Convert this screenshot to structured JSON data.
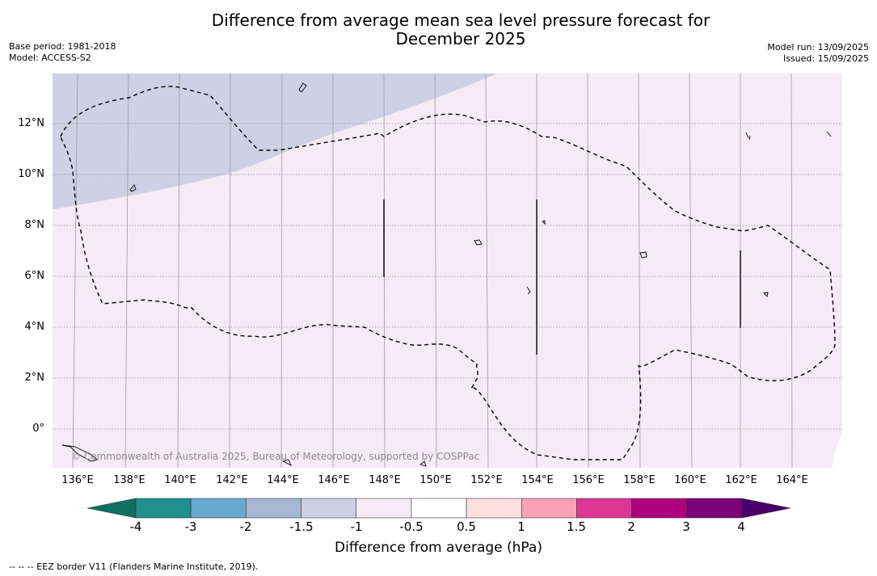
{
  "header": {
    "title_line1": "Difference from average mean sea level pressure forecast for",
    "title_line2": "December 2025",
    "base_period": "Base period: 1981-2018",
    "model": "Model: ACCESS-S2",
    "model_run": "Model run: 13/09/2025",
    "issued": "Issued: 15/09/2025"
  },
  "map": {
    "copyright": "© Commonwealth of Australia 2025, Bureau of Meteorology, supported by COSPPac",
    "lat_labels": [
      "12°N",
      "10°N",
      "8°N",
      "6°N",
      "4°N",
      "2°N",
      "0°"
    ],
    "lon_labels": [
      "136°E",
      "138°E",
      "140°E",
      "142°E",
      "144°E",
      "146°E",
      "148°E",
      "150°E",
      "152°E",
      "154°E",
      "156°E",
      "158°E",
      "160°E",
      "162°E",
      "164°E"
    ],
    "fill_colors": {
      "minus_1_5_to_minus_1": "#cfd0e5",
      "minus_1_to_minus_0_5": "#f4ecf5"
    },
    "eez_border_color": "#000000"
  },
  "colorbar": {
    "ticks": [
      "-4",
      "-3",
      "-2",
      "-1.5",
      "-1",
      "-0.5",
      "0.5",
      "1",
      "1.5",
      "2",
      "3",
      "4"
    ],
    "colors": {
      "below_min": "#0f7060",
      "bins": [
        "#21908f",
        "#67a9cf",
        "#a6b7d2",
        "#cfd0e5",
        "#f4ecf5",
        "#ffffff",
        "#fddfdd",
        "#f9a1b5",
        "#dc3796",
        "#ae017e",
        "#7a0177"
      ],
      "above_max": "#49006a"
    },
    "label": "Difference from average (hPa)"
  },
  "footnote": "--  --  -- EEZ border V11 (Flanders Marine Institute, 2019)."
}
